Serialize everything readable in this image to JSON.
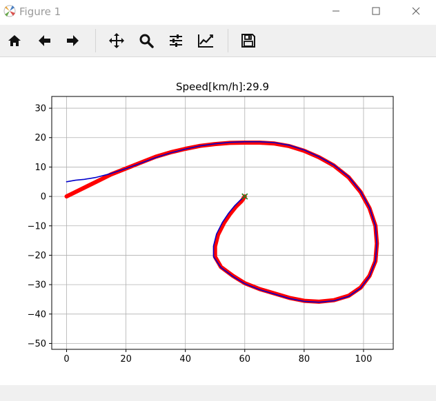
{
  "window": {
    "title": "Figure 1"
  },
  "toolbar": {
    "buttons": [
      {
        "name": "home",
        "icon": "home-icon"
      },
      {
        "name": "back",
        "icon": "arrow-left-icon"
      },
      {
        "name": "forward",
        "icon": "arrow-right-icon"
      },
      {
        "name": "pan",
        "icon": "move-icon"
      },
      {
        "name": "zoom",
        "icon": "magnifier-icon"
      },
      {
        "name": "configure-subplots",
        "icon": "sliders-icon"
      },
      {
        "name": "edit-axis",
        "icon": "line-chart-icon"
      },
      {
        "name": "save",
        "icon": "floppy-disk-icon"
      }
    ]
  },
  "status": {
    "text": ""
  },
  "chart_data": {
    "type": "line",
    "title": "Speed[km/h]:29.9",
    "xlabel": "",
    "ylabel": "",
    "xlim": [
      -5,
      110
    ],
    "ylim": [
      -52,
      34
    ],
    "xticks": [
      0,
      20,
      40,
      60,
      80,
      100
    ],
    "yticks": [
      -50,
      -40,
      -30,
      -20,
      -10,
      0,
      10,
      20,
      30
    ],
    "grid": true,
    "series": [
      {
        "color": "#ff0000",
        "style": "thick",
        "x": [
          0,
          5,
          10,
          15,
          20,
          25,
          30,
          35,
          40,
          45,
          50,
          55,
          60,
          65,
          70,
          75,
          80,
          85,
          90,
          95,
          99,
          102,
          104,
          104.5,
          104,
          102,
          99,
          95,
          90,
          85,
          80,
          75,
          70,
          65,
          60,
          56,
          52,
          50,
          50,
          51,
          53,
          55,
          57,
          59,
          60
        ],
        "y": [
          0,
          2.5,
          5,
          7.5,
          9.5,
          11.5,
          13.5,
          15,
          16.2,
          17.2,
          17.8,
          18.2,
          18.3,
          18.3,
          18,
          17.1,
          15.5,
          13.3,
          10.5,
          6.5,
          1.5,
          -4,
          -10,
          -16,
          -22,
          -27,
          -31,
          -33.8,
          -35.3,
          -35.8,
          -35.5,
          -34.5,
          -33,
          -31.5,
          -29.5,
          -27,
          -24,
          -20.5,
          -17,
          -13,
          -9,
          -6,
          -3.5,
          -1.5,
          0
        ]
      },
      {
        "color": "#0000cc",
        "style": "thin",
        "x": [
          0,
          3,
          6,
          10,
          15,
          20,
          25,
          30,
          35,
          40,
          45,
          50,
          55,
          60,
          65,
          70,
          75,
          80,
          85,
          90,
          95,
          99,
          102,
          104,
          104.5,
          104,
          102,
          99,
          95,
          90,
          85,
          80,
          75,
          70,
          65,
          60,
          56,
          52,
          49.5,
          49.5,
          50.5,
          52.5,
          54.5,
          56.5,
          58.5,
          60
        ],
        "y": [
          5,
          5.5,
          5.8,
          6.5,
          7.8,
          9.5,
          11.3,
          13.2,
          14.8,
          16.1,
          17.2,
          17.9,
          18.4,
          18.6,
          18.6,
          18.3,
          17.4,
          15.8,
          13.5,
          10.7,
          6.7,
          1.7,
          -3.8,
          -10,
          -16,
          -22,
          -27.2,
          -31.2,
          -34,
          -35.5,
          -36,
          -35.7,
          -34.7,
          -33.2,
          -31.7,
          -29.7,
          -27.2,
          -24.2,
          -20.5,
          -16.8,
          -12.8,
          -8.8,
          -5.8,
          -3.3,
          -1.3,
          0
        ]
      }
    ],
    "markers": [
      {
        "x": 60,
        "y": 0,
        "symbol": "x",
        "color": "#2e7d1f"
      }
    ]
  }
}
